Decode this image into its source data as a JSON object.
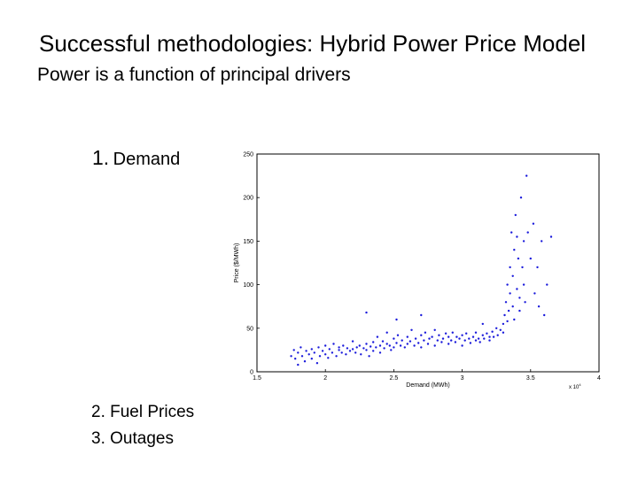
{
  "slide": {
    "title": "Successful methodologies: Hybrid Power Price Model",
    "subtitle": "Power is a function of principal drivers",
    "items": [
      {
        "number": "1.",
        "label": "Demand"
      },
      {
        "number": "",
        "label": "2. Fuel Prices"
      },
      {
        "number": "",
        "label": "3. Outages"
      }
    ]
  },
  "chart_data": {
    "type": "scatter",
    "title": "",
    "xlabel": "Demand (MWh)",
    "ylabel": "Price ($/MWh)",
    "x_multiplier_label": "x 10",
    "x_multiplier_exponent": "4",
    "xlim": [
      1.5,
      4
    ],
    "ylim": [
      0,
      250
    ],
    "xticks": [
      "1.5",
      "2",
      "2.5",
      "3",
      "3.5",
      "4"
    ],
    "yticks": [
      "0",
      "50",
      "100",
      "150",
      "200",
      "250"
    ],
    "grid": false,
    "series_color": "#1a1adb",
    "series": [
      {
        "points": [
          [
            1.75,
            18
          ],
          [
            1.77,
            25
          ],
          [
            1.78,
            15
          ],
          [
            1.8,
            22
          ],
          [
            1.8,
            8
          ],
          [
            1.82,
            28
          ],
          [
            1.83,
            18
          ],
          [
            1.85,
            12
          ],
          [
            1.86,
            24
          ],
          [
            1.88,
            20
          ],
          [
            1.9,
            15
          ],
          [
            1.9,
            26
          ],
          [
            1.92,
            22
          ],
          [
            1.94,
            10
          ],
          [
            1.95,
            28
          ],
          [
            1.96,
            18
          ],
          [
            1.98,
            24
          ],
          [
            2.0,
            20
          ],
          [
            2.0,
            30
          ],
          [
            2.02,
            16
          ],
          [
            2.03,
            26
          ],
          [
            2.05,
            22
          ],
          [
            2.06,
            32
          ],
          [
            2.08,
            18
          ],
          [
            2.1,
            25
          ],
          [
            2.1,
            28
          ],
          [
            2.12,
            22
          ],
          [
            2.13,
            30
          ],
          [
            2.15,
            20
          ],
          [
            2.16,
            27
          ],
          [
            2.18,
            24
          ],
          [
            2.2,
            26
          ],
          [
            2.2,
            35
          ],
          [
            2.22,
            22
          ],
          [
            2.23,
            28
          ],
          [
            2.25,
            30
          ],
          [
            2.26,
            20
          ],
          [
            2.28,
            27
          ],
          [
            2.3,
            32
          ],
          [
            2.3,
            25
          ],
          [
            2.32,
            18
          ],
          [
            2.33,
            29
          ],
          [
            2.35,
            24
          ],
          [
            2.35,
            34
          ],
          [
            2.37,
            28
          ],
          [
            2.38,
            40
          ],
          [
            2.4,
            30
          ],
          [
            2.4,
            22
          ],
          [
            2.42,
            35
          ],
          [
            2.43,
            27
          ],
          [
            2.45,
            32
          ],
          [
            2.45,
            45
          ],
          [
            2.47,
            30
          ],
          [
            2.48,
            25
          ],
          [
            2.5,
            38
          ],
          [
            2.5,
            28
          ],
          [
            2.52,
            33
          ],
          [
            2.53,
            42
          ],
          [
            2.55,
            30
          ],
          [
            2.56,
            36
          ],
          [
            2.58,
            28
          ],
          [
            2.6,
            40
          ],
          [
            2.6,
            32
          ],
          [
            2.62,
            35
          ],
          [
            2.63,
            48
          ],
          [
            2.65,
            30
          ],
          [
            2.66,
            38
          ],
          [
            2.68,
            33
          ],
          [
            2.7,
            42
          ],
          [
            2.7,
            28
          ],
          [
            2.72,
            36
          ],
          [
            2.73,
            45
          ],
          [
            2.75,
            32
          ],
          [
            2.76,
            38
          ],
          [
            2.78,
            40
          ],
          [
            2.8,
            30
          ],
          [
            2.8,
            48
          ],
          [
            2.82,
            36
          ],
          [
            2.83,
            42
          ],
          [
            2.85,
            34
          ],
          [
            2.86,
            38
          ],
          [
            2.88,
            44
          ],
          [
            2.9,
            32
          ],
          [
            2.9,
            40
          ],
          [
            2.92,
            36
          ],
          [
            2.93,
            45
          ],
          [
            2.95,
            34
          ],
          [
            2.96,
            40
          ],
          [
            2.98,
            38
          ],
          [
            3.0,
            42
          ],
          [
            3.0,
            30
          ],
          [
            3.02,
            36
          ],
          [
            3.03,
            44
          ],
          [
            3.05,
            38
          ],
          [
            3.06,
            33
          ],
          [
            3.08,
            40
          ],
          [
            3.1,
            36
          ],
          [
            3.1,
            45
          ],
          [
            3.12,
            38
          ],
          [
            3.13,
            34
          ],
          [
            3.15,
            42
          ],
          [
            3.16,
            38
          ],
          [
            3.18,
            44
          ],
          [
            3.2,
            40
          ],
          [
            3.2,
            36
          ],
          [
            3.22,
            46
          ],
          [
            3.23,
            40
          ],
          [
            3.25,
            50
          ],
          [
            3.26,
            42
          ],
          [
            3.28,
            48
          ],
          [
            3.3,
            55
          ],
          [
            3.3,
            45
          ],
          [
            3.31,
            65
          ],
          [
            3.32,
            80
          ],
          [
            3.33,
            100
          ],
          [
            3.33,
            58
          ],
          [
            3.34,
            70
          ],
          [
            3.35,
            120
          ],
          [
            3.35,
            90
          ],
          [
            3.36,
            160
          ],
          [
            3.37,
            75
          ],
          [
            3.37,
            110
          ],
          [
            3.38,
            140
          ],
          [
            3.38,
            60
          ],
          [
            3.39,
            180
          ],
          [
            3.4,
            95
          ],
          [
            3.4,
            155
          ],
          [
            3.41,
            130
          ],
          [
            3.42,
            85
          ],
          [
            3.42,
            70
          ],
          [
            3.43,
            200
          ],
          [
            3.44,
            120
          ],
          [
            3.45,
            150
          ],
          [
            3.45,
            100
          ],
          [
            3.46,
            80
          ],
          [
            3.47,
            225
          ],
          [
            3.48,
            160
          ],
          [
            3.5,
            130
          ],
          [
            3.52,
            170
          ],
          [
            3.53,
            90
          ],
          [
            3.55,
            120
          ],
          [
            3.56,
            75
          ],
          [
            3.58,
            150
          ],
          [
            3.6,
            65
          ],
          [
            3.62,
            100
          ],
          [
            3.65,
            155
          ],
          [
            2.3,
            68
          ],
          [
            2.52,
            60
          ],
          [
            2.7,
            65
          ],
          [
            3.15,
            55
          ]
        ]
      }
    ]
  }
}
